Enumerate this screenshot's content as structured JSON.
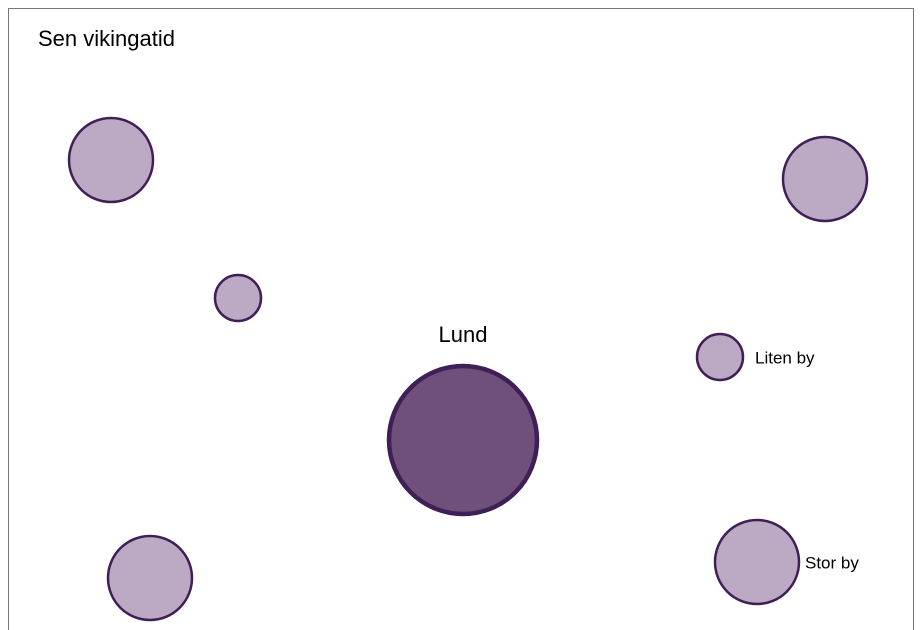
{
  "title": "Sen vikingatid",
  "nodes": [
    {
      "label": "Lund"
    }
  ],
  "legend": {
    "small": "Liten by",
    "large": "Stor by"
  }
}
